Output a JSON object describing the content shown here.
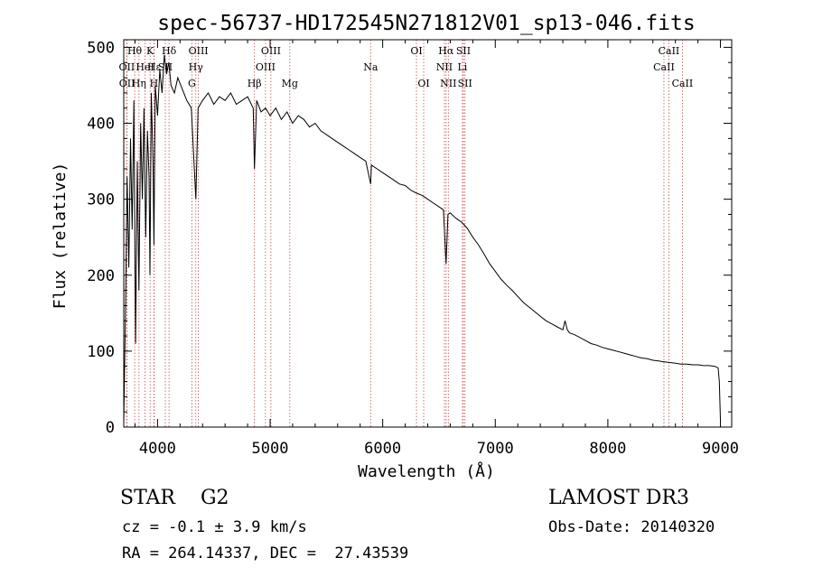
{
  "chart_data": {
    "type": "line",
    "title": "spec-56737-HD172545N271812V01_sp13-046.fits",
    "xlabel": "Wavelength (Å)",
    "ylabel": "Flux (relative)",
    "xlim": [
      3700,
      9100
    ],
    "ylim": [
      0,
      510
    ],
    "xticks": [
      4000,
      5000,
      6000,
      7000,
      8000,
      9000
    ],
    "yticks": [
      0,
      100,
      200,
      300,
      400,
      500
    ],
    "grid": false,
    "series": [
      {
        "name": "flux",
        "x": [
          3700,
          3715,
          3730,
          3745,
          3760,
          3775,
          3790,
          3805,
          3820,
          3835,
          3850,
          3865,
          3880,
          3895,
          3910,
          3925,
          3933,
          3945,
          3960,
          3968,
          3980,
          4000,
          4020,
          4040,
          4060,
          4080,
          4100,
          4120,
          4150,
          4180,
          4220,
          4260,
          4300,
          4320,
          4340,
          4360,
          4400,
          4450,
          4500,
          4550,
          4600,
          4650,
          4700,
          4750,
          4800,
          4850,
          4861,
          4880,
          4920,
          4960,
          5000,
          5050,
          5100,
          5150,
          5200,
          5250,
          5300,
          5350,
          5400,
          5450,
          5500,
          5550,
          5600,
          5650,
          5700,
          5750,
          5800,
          5850,
          5893,
          5900,
          5950,
          6000,
          6050,
          6100,
          6150,
          6200,
          6250,
          6300,
          6350,
          6400,
          6450,
          6500,
          6540,
          6563,
          6580,
          6600,
          6650,
          6700,
          6750,
          6800,
          6850,
          6900,
          6950,
          7000,
          7050,
          7100,
          7150,
          7200,
          7250,
          7300,
          7350,
          7400,
          7450,
          7500,
          7550,
          7600,
          7620,
          7640,
          7660,
          7700,
          7750,
          7800,
          7850,
          7900,
          7950,
          8000,
          8050,
          8100,
          8150,
          8200,
          8250,
          8300,
          8350,
          8400,
          8450,
          8500,
          8550,
          8600,
          8650,
          8700,
          8750,
          8800,
          8850,
          8900,
          8950,
          8980,
          8990,
          9000
        ],
        "values": [
          5,
          150,
          330,
          210,
          380,
          260,
          430,
          110,
          350,
          180,
          400,
          300,
          420,
          250,
          390,
          330,
          200,
          440,
          350,
          240,
          450,
          410,
          470,
          440,
          490,
          465,
          480,
          450,
          440,
          460,
          445,
          430,
          420,
          360,
          300,
          420,
          430,
          440,
          425,
          435,
          430,
          440,
          425,
          430,
          435,
          420,
          340,
          430,
          415,
          420,
          410,
          420,
          405,
          415,
          400,
          410,
          405,
          395,
          400,
          390,
          385,
          380,
          375,
          370,
          365,
          360,
          355,
          350,
          320,
          345,
          340,
          335,
          330,
          325,
          320,
          318,
          312,
          308,
          305,
          300,
          295,
          290,
          286,
          215,
          280,
          282,
          275,
          270,
          262,
          250,
          240,
          228,
          215,
          205,
          195,
          187,
          180,
          172,
          164,
          158,
          152,
          146,
          140,
          136,
          132,
          128,
          140,
          128,
          124,
          122,
          118,
          114,
          110,
          108,
          105,
          103,
          101,
          99,
          97,
          95,
          93,
          91,
          90,
          88,
          87,
          86,
          85,
          84,
          83,
          83,
          82,
          82,
          81,
          81,
          80,
          78,
          60,
          10
        ]
      }
    ],
    "lines": [
      {
        "label": "Hθ",
        "wavelength": 3797,
        "row": 0
      },
      {
        "label": "OII",
        "wavelength": 3727,
        "row": 1
      },
      {
        "label": "OII",
        "wavelength": 3729,
        "row": 2
      },
      {
        "label": "Hη",
        "wavelength": 3835,
        "row": 2
      },
      {
        "label": "HeI",
        "wavelength": 3889,
        "row": 1
      },
      {
        "label": "K",
        "wavelength": 3934,
        "row": 0
      },
      {
        "label": "H",
        "wavelength": 3968,
        "row": 2
      },
      {
        "label": "Hε",
        "wavelength": 3970,
        "row": 1
      },
      {
        "label": "Hδ",
        "wavelength": 4102,
        "row": 0
      },
      {
        "label": "SII",
        "wavelength": 4069,
        "row": 1
      },
      {
        "label": "OIII",
        "wavelength": 4363,
        "row": 0
      },
      {
        "label": "Hγ",
        "wavelength": 4340,
        "row": 1
      },
      {
        "label": "G",
        "wavelength": 4305,
        "row": 2
      },
      {
        "label": "Hβ",
        "wavelength": 4861,
        "row": 2
      },
      {
        "label": "OIII",
        "wavelength": 4959,
        "row": 1
      },
      {
        "label": "OIII",
        "wavelength": 5007,
        "row": 0
      },
      {
        "label": "Mg",
        "wavelength": 5175,
        "row": 2
      },
      {
        "label": "Na",
        "wavelength": 5893,
        "row": 1
      },
      {
        "label": "OI",
        "wavelength": 6300,
        "row": 0
      },
      {
        "label": "OI",
        "wavelength": 6364,
        "row": 2
      },
      {
        "label": "NII",
        "wavelength": 6548,
        "row": 1
      },
      {
        "label": "Hα",
        "wavelength": 6563,
        "row": 0
      },
      {
        "label": "NII",
        "wavelength": 6583,
        "row": 2
      },
      {
        "label": "Li",
        "wavelength": 6708,
        "row": 1
      },
      {
        "label": "SII",
        "wavelength": 6717,
        "row": 0
      },
      {
        "label": "SII",
        "wavelength": 6731,
        "row": 2
      },
      {
        "label": "CaII",
        "wavelength": 8498,
        "row": 1
      },
      {
        "label": "CaII",
        "wavelength": 8542,
        "row": 0
      },
      {
        "label": "CaII",
        "wavelength": 8662,
        "row": 2
      }
    ]
  },
  "info": {
    "star_class": "STAR    G2",
    "survey": "LAMOST DR3",
    "cz": "cz = -0.1 ± 3.9 km/s",
    "obs_date": "Obs-Date: 20140320",
    "radec": "RA = 264.14337, DEC =  27.43539"
  },
  "colors": {
    "axis": "#000000",
    "spectrum": "#000000",
    "line_marker": "#c0504d",
    "background": "#ffffff"
  }
}
